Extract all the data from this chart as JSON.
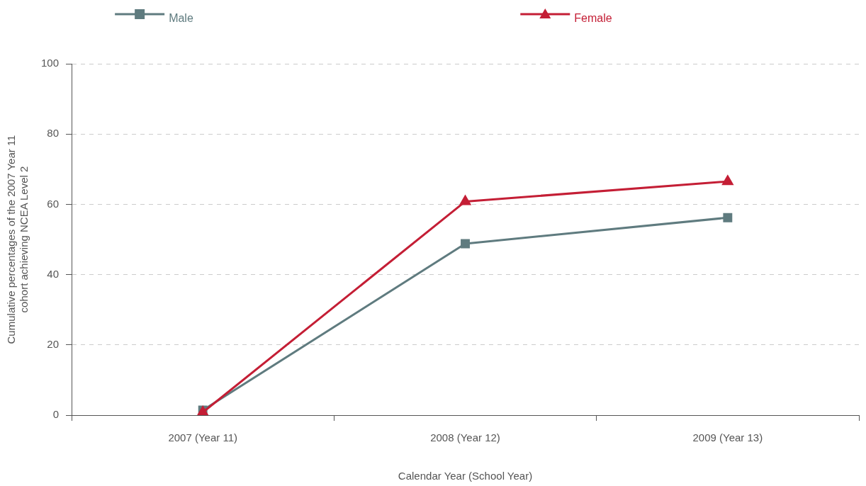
{
  "chart_data": {
    "type": "line",
    "xlabel": "Calendar Year (School Year)",
    "ylabel": "Cumulative percentages of the 2007 Year 11 cohort achieving NCEA Level 2",
    "categories": [
      "2007 (Year 11)",
      "2008 (Year 12)",
      "2009 (Year 13)"
    ],
    "series": [
      {
        "name": "Male",
        "color": "#5f7b7f",
        "marker": "square",
        "values": [
          1.4,
          48.8,
          56.2
        ]
      },
      {
        "name": "Female",
        "color": "#c41e35",
        "marker": "triangle",
        "values": [
          0.8,
          60.8,
          66.5
        ]
      }
    ],
    "ylim": [
      0,
      100
    ],
    "yticks": [
      0,
      20,
      40,
      60,
      80,
      100
    ],
    "grid": "y",
    "legend": "top",
    "line_style": "solid"
  }
}
